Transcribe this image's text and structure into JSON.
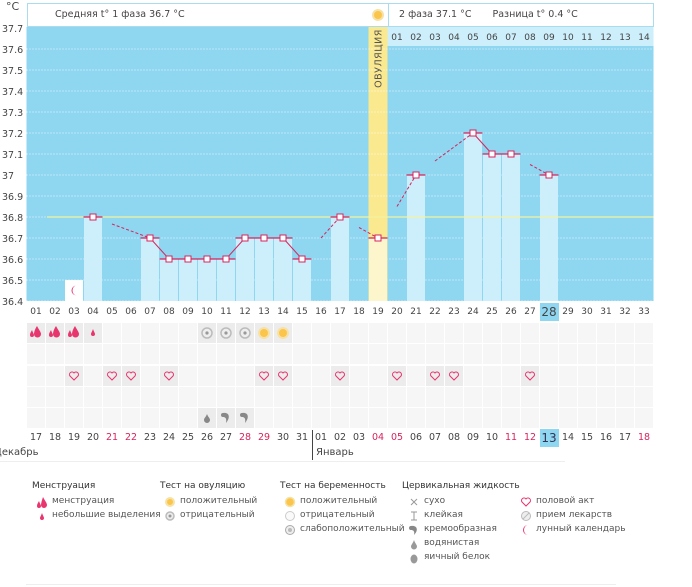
{
  "header": {
    "unit": "°C",
    "phase1": "Средняя t° 1 фаза 36.7 °C",
    "phase2": "2 фаза 37.1 °C",
    "difference": "Разница t° 0.4 °C",
    "ovulation_label": "ОВУЛЯЦИЯ"
  },
  "chart_data": {
    "type": "bar",
    "title": "",
    "ylabel": "°C",
    "ylim": [
      36.4,
      37.7
    ],
    "yticks": [
      "37.7",
      "37.6",
      "37.5",
      "37.4",
      "37.3",
      "37.2",
      "37.1",
      "37",
      "36.9",
      "36.8",
      "36.7",
      "36.6",
      "36.5",
      "36.4"
    ],
    "grid": true,
    "coverline": 36.8,
    "ovulation_day": 19,
    "current_day": 28,
    "cycle_days": [
      "01",
      "02",
      "03",
      "04",
      "05",
      "06",
      "07",
      "08",
      "09",
      "10",
      "11",
      "12",
      "13",
      "14",
      "15",
      "16",
      "17",
      "18",
      "19",
      "20",
      "21",
      "22",
      "23",
      "24",
      "25",
      "26",
      "27",
      "28",
      "29",
      "30",
      "31",
      "32",
      "33"
    ],
    "temperatures": [
      null,
      null,
      null,
      36.8,
      null,
      null,
      36.7,
      36.6,
      36.6,
      36.6,
      36.6,
      36.7,
      36.7,
      36.7,
      36.6,
      null,
      36.8,
      null,
      36.7,
      null,
      37.0,
      null,
      null,
      37.2,
      37.1,
      37.1,
      null,
      37.0,
      null,
      null,
      null,
      null,
      null
    ],
    "phase2_days": [
      "01",
      "02",
      "03",
      "04",
      "05",
      "06",
      "07",
      "08",
      "09",
      "10",
      "11",
      "12",
      "13",
      "14"
    ],
    "moon_day": 3,
    "colors": {
      "background": "#8fd6f1",
      "bar": "#cdeefb",
      "ovulation": "#fbe98f",
      "line": "#d6245c",
      "coverline": "#f4f3a0"
    }
  },
  "rows": {
    "menstruation": {
      "1": "heavy",
      "2": "heavy",
      "3": "heavy",
      "4": "light"
    },
    "ovulation_test": {
      "10": "negative",
      "11": "negative",
      "12": "negative",
      "13": "positive",
      "14": "positive"
    },
    "intercourse": [
      3,
      5,
      6,
      8,
      13,
      14,
      17,
      20,
      22,
      23,
      27
    ],
    "cervical_fluid": {
      "10": "watery",
      "11": "creamy",
      "12": "creamy"
    }
  },
  "calendar": {
    "dates": [
      "17",
      "18",
      "19",
      "20",
      "21",
      "22",
      "23",
      "24",
      "25",
      "26",
      "27",
      "28",
      "29",
      "30",
      "31",
      "01",
      "02",
      "03",
      "04",
      "05",
      "06",
      "07",
      "08",
      "09",
      "10",
      "11",
      "12",
      "13",
      "14",
      "15",
      "16",
      "17",
      "18"
    ],
    "red": [
      5,
      6,
      12,
      13,
      19,
      20,
      26,
      27,
      33
    ],
    "highlight": 28,
    "months": [
      "Декабрь",
      "Январь"
    ]
  },
  "legend": {
    "menstruation": {
      "title": "Менструация",
      "items": [
        "менструация",
        "небольшие выделения"
      ]
    },
    "ovulation_test": {
      "title": "Тест на овуляцию",
      "items": [
        "положительный",
        "отрицательный"
      ]
    },
    "pregnancy_test": {
      "title": "Тест на беременность",
      "items": [
        "положительный",
        "отрицательный",
        "слабоположительный"
      ]
    },
    "cervical_fluid": {
      "title": "Цервикальная жидкость",
      "items": [
        "сухо",
        "клейкая",
        "кремообразная",
        "водянистая",
        "яичный белок"
      ]
    },
    "other": {
      "items": [
        "половой акт",
        "прием лекарств",
        "лунный календарь"
      ]
    }
  }
}
